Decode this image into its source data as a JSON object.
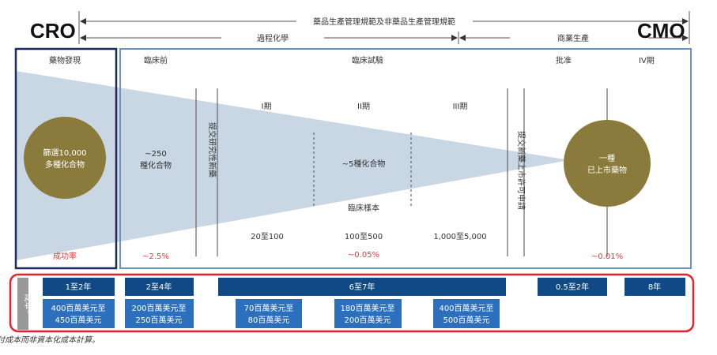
{
  "header": {
    "cro": "CRO",
    "cmo": "CMO",
    "gmp_span": "藥品生產管理規範及非藥品生產管理規範",
    "process_chem": "過程化學",
    "commercial": "商業生產"
  },
  "stages": {
    "discovery": "藥物發現",
    "preclinical": "臨床前",
    "clinical": "臨床試驗",
    "approval": "批准",
    "phase4": "IV期"
  },
  "phases": [
    "I期",
    "II期",
    "III期"
  ],
  "compounds": {
    "discovery_l1": "篩選10,000",
    "discovery_l2": "多種化合物",
    "preclinical_l1": "~250",
    "preclinical_l2": "種化合物",
    "clinical": "~5種化合物",
    "approved_l1": "一種",
    "approved_l2": "已上市藥物"
  },
  "milestones": {
    "ind": "提交研究性新藥",
    "nda": "提交新藥上市許可申請"
  },
  "clinical_samples": {
    "label": "臨床樣本",
    "values": [
      "20至100",
      "100至500",
      "1,000至5,000"
    ]
  },
  "success": {
    "label": "成功率",
    "values": [
      "~2.5%",
      "~0.05%",
      "~0.01%"
    ]
  },
  "cost_row": {
    "label": "成本*",
    "durations": [
      "1至2年",
      "2至4年",
      "6至7年",
      "0.5至2年",
      "8年"
    ],
    "costs": [
      [
        "400百萬美元至",
        "450百萬美元"
      ],
      [
        "200百萬美元至",
        "250百萬美元"
      ],
      [
        "70百萬美元至",
        "80百萬美元"
      ],
      [
        "180百萬美元至",
        "200百萬美元"
      ],
      [
        "400百萬美元至",
        "500百萬美元"
      ]
    ]
  },
  "footnote": "* 成本乃按實際支付成本而非資本化成本計算。",
  "colors": {
    "navy": "#1f2a5c",
    "box_border": "#6e93c2",
    "funnel": "#c9d6e3",
    "circle": "#8a7a3c",
    "dark_box": "#0f4a86",
    "light_box": "#2b6fbd",
    "red": "#e8202a",
    "success": "#e03a3a"
  }
}
